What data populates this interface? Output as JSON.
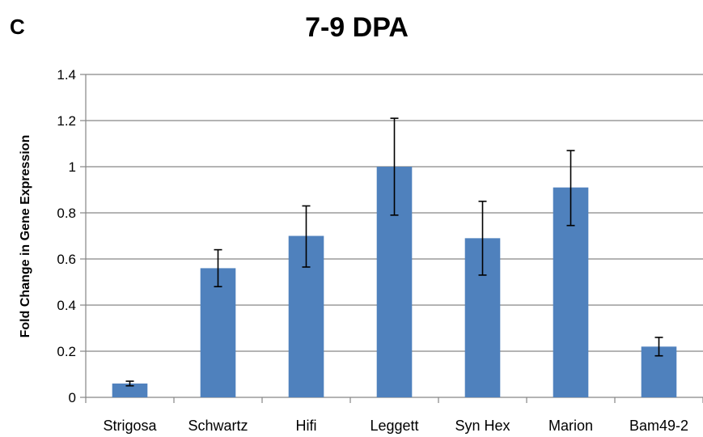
{
  "panel_label": "C",
  "chart_data": {
    "type": "bar",
    "title": "7-9 DPA",
    "xlabel": "",
    "ylabel": "Fold Change in Gene Expression",
    "categories": [
      "Strigosa",
      "Schwartz",
      "Hifi",
      "Leggett",
      "Syn Hex",
      "Marion",
      "Bam49-2"
    ],
    "series": [
      {
        "values": [
          0.06,
          0.56,
          0.7,
          1.0,
          0.69,
          0.91,
          0.22
        ],
        "error_low": [
          0.05,
          0.48,
          0.565,
          0.79,
          0.53,
          0.745,
          0.18
        ],
        "error_high": [
          0.07,
          0.64,
          0.83,
          1.21,
          0.85,
          1.07,
          0.26
        ]
      }
    ],
    "ylim": [
      0,
      1.4
    ],
    "yticks": [
      "0",
      "0.2",
      "0.4",
      "0.6",
      "0.8",
      "1",
      "1.2",
      "1.4"
    ],
    "grid": "horizontal",
    "bar_color": "#4F81BD"
  }
}
